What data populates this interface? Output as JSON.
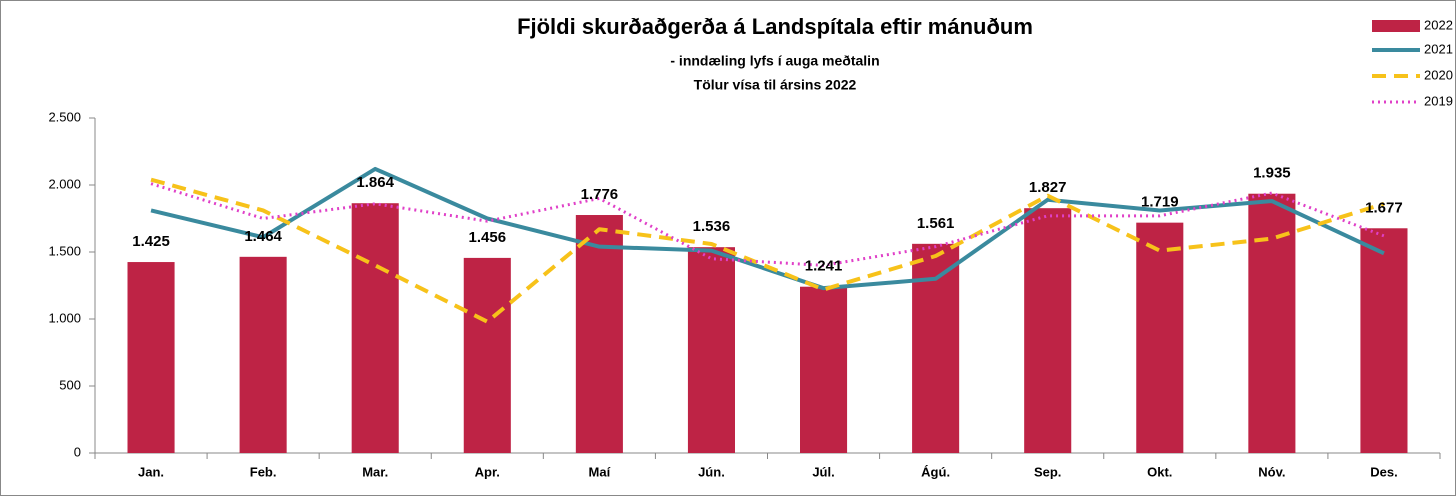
{
  "chart_data": {
    "type": "bar",
    "title": "Fjöldi skurðaðgerða á Landspítala eftir mánuðum",
    "subtitle": [
      "- inndæling lyfs í auga meðtalin",
      "Tölur vísa til ársins 2022"
    ],
    "categories": [
      "Jan.",
      "Feb.",
      "Mar.",
      "Apr.",
      "Maí",
      "Jún.",
      "Júl.",
      "Ágú.",
      "Sep.",
      "Okt.",
      "Nóv.",
      "Des."
    ],
    "series": [
      {
        "name": "2022",
        "type": "bar",
        "color": "#be2345",
        "values": [
          1425,
          1464,
          1864,
          1456,
          1776,
          1536,
          1241,
          1561,
          1827,
          1719,
          1935,
          1677
        ],
        "value_labels": [
          "1.425",
          "1.464",
          "1.864",
          "1.456",
          "1.776",
          "1.536",
          "1.241",
          "1.561",
          "1.827",
          "1.719",
          "1.935",
          "1.677"
        ]
      },
      {
        "name": "2021",
        "type": "line",
        "dash": "solid",
        "color": "#3a8a9e",
        "values": [
          1810,
          1610,
          2120,
          1750,
          1540,
          1510,
          1230,
          1300,
          1890,
          1810,
          1880,
          1490
        ]
      },
      {
        "name": "2020",
        "type": "line",
        "dash": "dashed",
        "color": "#f7c21a",
        "values": [
          2040,
          1810,
          1400,
          980,
          1670,
          1560,
          1220,
          1470,
          1920,
          1510,
          1600,
          1860
        ]
      },
      {
        "name": "2019",
        "type": "line",
        "dash": "dotted",
        "color": "#e040c8",
        "values": [
          2010,
          1750,
          1860,
          1730,
          1900,
          1450,
          1400,
          1540,
          1770,
          1770,
          1940,
          1620
        ]
      }
    ],
    "ylim": [
      0,
      2500
    ],
    "yticks": [
      0,
      500,
      {
        "value": 1000,
        "label": "1.000"
      },
      {
        "value": 1500,
        "label": "1.500"
      },
      {
        "value": 2000,
        "label": "2.000"
      },
      {
        "value": 2500,
        "label": "2.500"
      }
    ],
    "grid": false,
    "legend": "top-right"
  }
}
